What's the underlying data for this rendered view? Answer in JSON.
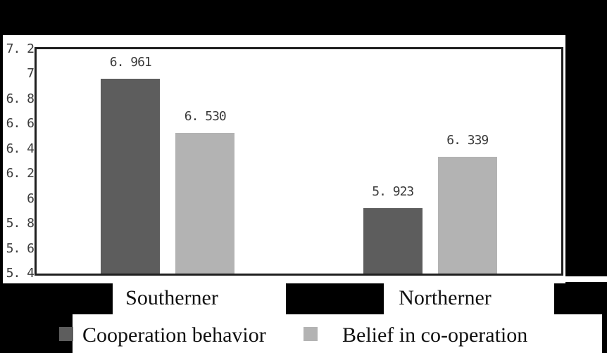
{
  "figure": {
    "background_color": "#000000",
    "panel_color": "#ffffff"
  },
  "chart_data": {
    "type": "bar",
    "title": "",
    "xlabel": "",
    "ylabel": "",
    "categories": [
      "Southerner",
      "Northerner"
    ],
    "series": [
      {
        "name": "Cooperation behavior",
        "color": "#5d5d5d",
        "values": [
          6.961,
          5.923
        ],
        "value_labels": [
          "6. 961",
          "5. 923"
        ]
      },
      {
        "name": "Belief in co-operation",
        "color": "#b3b3b3",
        "values": [
          6.53,
          6.339
        ],
        "value_labels": [
          "6. 530",
          "6. 339"
        ]
      }
    ],
    "ylim": [
      5.4,
      7.2
    ],
    "ytick_values": [
      7.2,
      7.0,
      6.8,
      6.6,
      6.4,
      6.2,
      6.0,
      5.8,
      5.6,
      5.4
    ],
    "ytick_labels": [
      "7. 2",
      "7",
      "6. 8",
      "6. 6",
      "6. 4",
      "6. 2",
      "6",
      "5. 8",
      "5. 6",
      "5. 4"
    ],
    "grid": false,
    "legend_position": "bottom",
    "axis_border_color": "#1f1f1f",
    "tick_text_color": "#3c3c3c",
    "label_text_color": "#101010"
  }
}
